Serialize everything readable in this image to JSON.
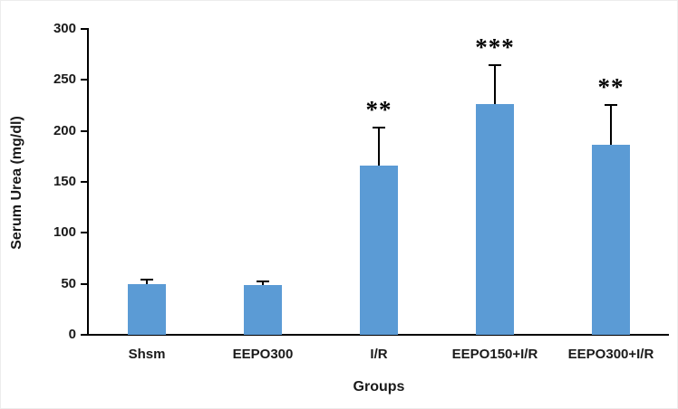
{
  "chart_data": {
    "type": "bar",
    "title": "",
    "xlabel": "Groups",
    "ylabel": "Serum Urea (mg/dl)",
    "categories": [
      "Shsm",
      "EEPO300",
      "I/R",
      "EEPO150+I/R",
      "EEPO300+I/R"
    ],
    "values": [
      50,
      49,
      166,
      226,
      186
    ],
    "errors": [
      5,
      4,
      38,
      39,
      40
    ],
    "annotations": [
      "",
      "",
      "**",
      "***",
      "**"
    ],
    "ylim": [
      0,
      300
    ],
    "yticks": [
      0,
      50,
      100,
      150,
      200,
      250,
      300
    ],
    "bar_color": "#5b9bd5",
    "axis_color": "#000000",
    "text_color": "#1a1a1a",
    "grid": false,
    "legend": false
  }
}
